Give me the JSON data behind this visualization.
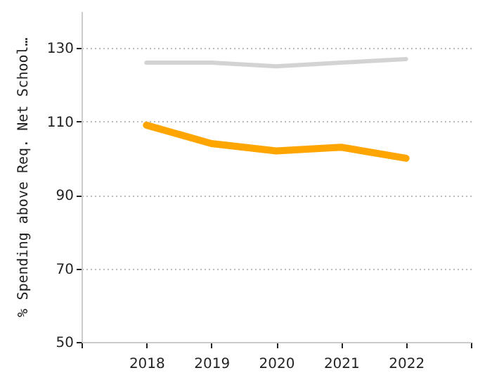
{
  "chart_data": {
    "type": "line",
    "ylabel": "% Spending above Req. Net School…",
    "x": [
      2018,
      2019,
      2020,
      2021,
      2022
    ],
    "series": [
      {
        "color": "#d3d3d3",
        "values": [
          126,
          126,
          125,
          126,
          127
        ]
      },
      {
        "color": "#ffa500",
        "values": [
          109,
          104,
          102,
          103,
          100
        ]
      }
    ],
    "xlim": [
      2017,
      2023
    ],
    "xticks": [
      {
        "value": 2017,
        "label": null
      },
      2018,
      2019,
      2020,
      2021,
      2022,
      {
        "value": 2023,
        "label": null
      }
    ],
    "ylim": [
      50,
      140
    ],
    "yticks": [
      50,
      70,
      90,
      110,
      130
    ],
    "grid": "y",
    "marker": "none",
    "line_style": "solid"
  }
}
